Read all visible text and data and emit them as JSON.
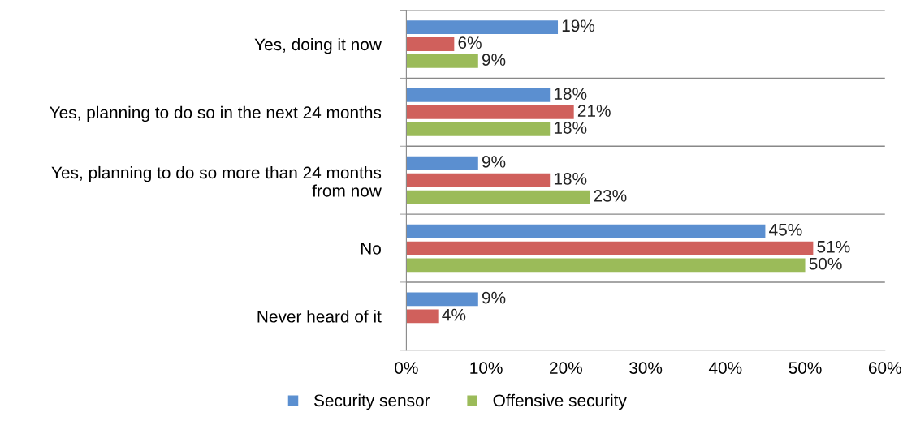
{
  "chart_data": {
    "type": "bar",
    "orientation": "horizontal",
    "categories": [
      "Yes, doing it now",
      "Yes, planning to do so in the next 24 months",
      "Yes, planning to do so more than 24 months\nfrom now",
      "No",
      "Never heard of it"
    ],
    "series": [
      {
        "name": "Security sensor",
        "color": "#5b8fd0",
        "values": [
          19,
          18,
          9,
          45,
          9
        ],
        "value_labels": [
          "19%",
          "18%",
          "9%",
          "45%",
          "9%"
        ]
      },
      {
        "color": "#d0605c",
        "values": [
          6,
          21,
          18,
          51,
          4
        ],
        "value_labels": [
          "6%",
          "21%",
          "18%",
          "51%",
          "4%"
        ]
      },
      {
        "name": "Offensive security",
        "color": "#9bbb59",
        "values": [
          9,
          18,
          23,
          50,
          null
        ],
        "value_labels": [
          "9%",
          "18%",
          "23%",
          "50%",
          null
        ]
      }
    ],
    "xlim": [
      0,
      60
    ],
    "xticks": [
      {
        "value": 0,
        "label": "0%"
      },
      {
        "value": 10,
        "label": "10%"
      },
      {
        "value": 20,
        "label": "20%"
      },
      {
        "value": 30,
        "label": "30%"
      },
      {
        "value": 40,
        "label": "40%"
      },
      {
        "value": 50,
        "label": "50%"
      },
      {
        "value": 60,
        "label": "60%"
      }
    ],
    "grid": "y",
    "legend": "bottom"
  }
}
